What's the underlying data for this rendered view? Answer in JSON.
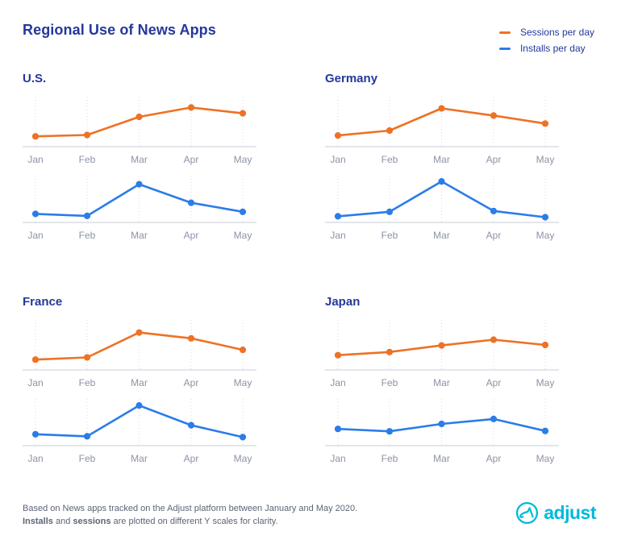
{
  "title": "Regional Use of News Apps",
  "legend": [
    {
      "label": "Sessions per day",
      "color": "#ee7125"
    },
    {
      "label": "Installs per day",
      "color": "#2b7ce9"
    }
  ],
  "months": [
    "Jan",
    "Feb",
    "Mar",
    "Apr",
    "May"
  ],
  "chart_data": [
    {
      "type": "line",
      "region": "U.S.",
      "series": "Sessions per day",
      "title": "U.S. — Sessions per day",
      "categories": [
        "Jan",
        "Feb",
        "Mar",
        "Apr",
        "May"
      ],
      "values": [
        16,
        19,
        60,
        81,
        68
      ],
      "xlabel": "",
      "ylabel": "",
      "ylim": [
        0,
        100
      ],
      "grid": "vertical-dotted",
      "color": "#ee7125"
    },
    {
      "type": "line",
      "region": "U.S.",
      "series": "Installs per day",
      "title": "U.S. — Installs per day",
      "categories": [
        "Jan",
        "Feb",
        "Mar",
        "Apr",
        "May"
      ],
      "values": [
        13,
        8,
        85,
        40,
        18
      ],
      "xlabel": "",
      "ylabel": "",
      "ylim": [
        0,
        100
      ],
      "grid": "vertical-dotted",
      "color": "#2b7ce9"
    },
    {
      "type": "line",
      "region": "Germany",
      "series": "Sessions per day",
      "title": "Germany — Sessions per day",
      "categories": [
        "Jan",
        "Feb",
        "Mar",
        "Apr",
        "May"
      ],
      "values": [
        18,
        29,
        79,
        63,
        45
      ],
      "xlabel": "",
      "ylabel": "",
      "ylim": [
        0,
        100
      ],
      "grid": "vertical-dotted",
      "color": "#ee7125"
    },
    {
      "type": "line",
      "region": "Germany",
      "series": "Installs per day",
      "title": "Germany — Installs per day",
      "categories": [
        "Jan",
        "Feb",
        "Mar",
        "Apr",
        "May"
      ],
      "values": [
        7,
        18,
        92,
        20,
        5
      ],
      "xlabel": "",
      "ylabel": "",
      "ylim": [
        0,
        100
      ],
      "grid": "vertical-dotted",
      "color": "#2b7ce9"
    },
    {
      "type": "line",
      "region": "France",
      "series": "Sessions per day",
      "title": "France — Sessions per day",
      "categories": [
        "Jan",
        "Feb",
        "Mar",
        "Apr",
        "May"
      ],
      "values": [
        16,
        21,
        77,
        64,
        38
      ],
      "xlabel": "",
      "ylabel": "",
      "ylim": [
        0,
        100
      ],
      "grid": "vertical-dotted",
      "color": "#ee7125"
    },
    {
      "type": "line",
      "region": "France",
      "series": "Installs per day",
      "title": "France — Installs per day",
      "categories": [
        "Jan",
        "Feb",
        "Mar",
        "Apr",
        "May"
      ],
      "values": [
        20,
        15,
        90,
        42,
        13
      ],
      "xlabel": "",
      "ylabel": "",
      "ylim": [
        0,
        100
      ],
      "grid": "vertical-dotted",
      "color": "#2b7ce9"
    },
    {
      "type": "line",
      "region": "Japan",
      "series": "Sessions per day",
      "title": "Japan — Sessions per day",
      "categories": [
        "Jan",
        "Feb",
        "Mar",
        "Apr",
        "May"
      ],
      "values": [
        26,
        33,
        48,
        61,
        49
      ],
      "xlabel": "",
      "ylabel": "",
      "ylim": [
        0,
        100
      ],
      "grid": "vertical-dotted",
      "color": "#ee7125"
    },
    {
      "type": "line",
      "region": "Japan",
      "series": "Installs per day",
      "title": "Japan — Installs per day",
      "categories": [
        "Jan",
        "Feb",
        "Mar",
        "Apr",
        "May"
      ],
      "values": [
        33,
        27,
        45,
        57,
        28
      ],
      "xlabel": "",
      "ylabel": "",
      "ylim": [
        0,
        100
      ],
      "grid": "vertical-dotted",
      "color": "#2b7ce9"
    }
  ],
  "footnote": {
    "line1": "Based on News apps tracked on the Adjust platform between January and May 2020.",
    "line2": {
      "bold1": "Installs",
      "mid": " and ",
      "bold2": "sessions",
      "rest": " are plotted on different Y scales for clarity."
    }
  },
  "logo": {
    "text": "adjust",
    "color": "#00b9da"
  },
  "colors": {
    "navy": "#24389b",
    "sessions_orange": "#ee7125",
    "installs_blue": "#2b7ce9",
    "axis_line": "#e4e6eb",
    "gridline": "#d8dbe2",
    "tick_label": "#8c93a6",
    "footnote_text": "#5b6476",
    "brand_cyan": "#00b9da",
    "background": "#ffffff"
  }
}
